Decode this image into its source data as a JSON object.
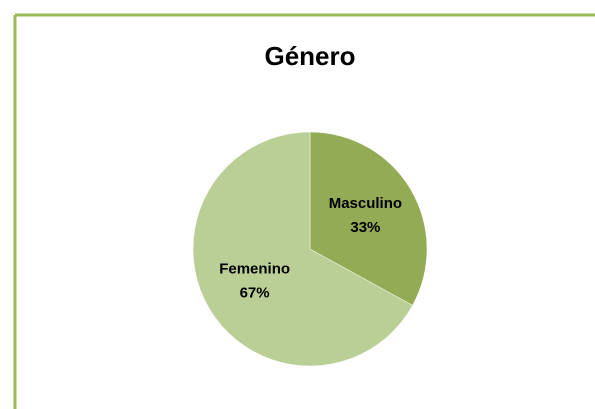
{
  "chart_data": {
    "type": "pie",
    "title": "Género",
    "categories": [
      "Masculino",
      "Femenino"
    ],
    "values": [
      33,
      67
    ],
    "value_labels": [
      "33%",
      "67%"
    ],
    "colors": [
      "#93ab55",
      "#b9cf96"
    ]
  }
}
